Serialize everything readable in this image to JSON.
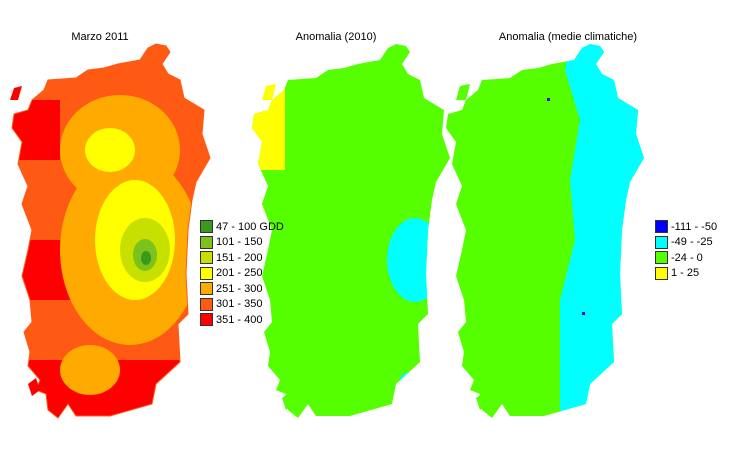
{
  "panels": [
    {
      "title": "Marzo 2011"
    },
    {
      "title": "Anomalia (2010)"
    },
    {
      "title": "Anomalia (medie climatiche)"
    }
  ],
  "legend_gdd": {
    "items": [
      {
        "label": "47 - 100 GDD",
        "color": "#3a9a1c"
      },
      {
        "label": "101 - 150",
        "color": "#7cc21c"
      },
      {
        "label": "151 - 200",
        "color": "#c8e000"
      },
      {
        "label": "201 - 250",
        "color": "#ffff00"
      },
      {
        "label": "251 - 300",
        "color": "#ffaa00"
      },
      {
        "label": "301 - 350",
        "color": "#ff5a14"
      },
      {
        "label": "351 - 400",
        "color": "#ff0000"
      }
    ]
  },
  "legend_anomaly": {
    "items": [
      {
        "label": "-111 - -50",
        "color": "#0000ff"
      },
      {
        "label": "-49 - -25",
        "color": "#00ffff"
      },
      {
        "label": "-24 - 0",
        "color": "#55ff00"
      },
      {
        "label": "1 - 25",
        "color": "#ffff00"
      }
    ]
  }
}
